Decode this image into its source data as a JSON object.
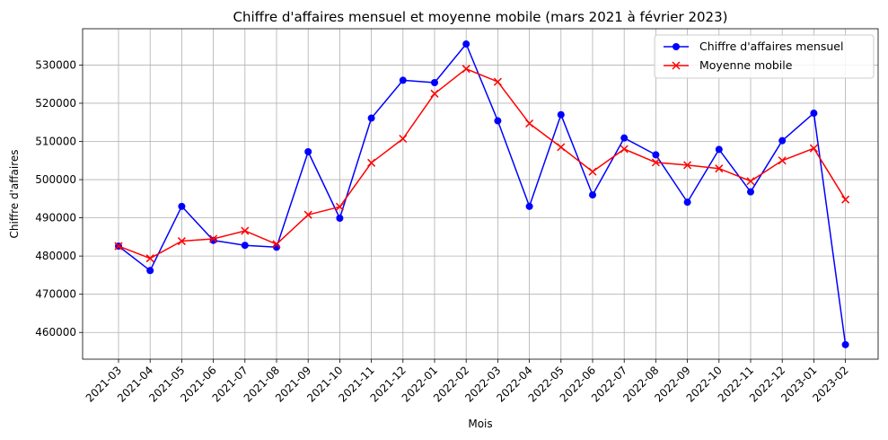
{
  "chart_data": {
    "type": "line",
    "title": "Chiffre d'affaires mensuel et moyenne mobile (mars 2021 à février 2023)",
    "xlabel": "Mois",
    "ylabel": "Chiffre d'affaires",
    "categories": [
      "2021-03",
      "2021-04",
      "2021-05",
      "2021-06",
      "2021-07",
      "2021-08",
      "2021-09",
      "2021-10",
      "2021-11",
      "2021-12",
      "2022-01",
      "2022-02",
      "2022-03",
      "2022-04",
      "2022-05",
      "2022-06",
      "2022-07",
      "2022-08",
      "2022-09",
      "2022-10",
      "2022-11",
      "2022-12",
      "2023-01",
      "2023-02"
    ],
    "yticks": [
      460000,
      470000,
      480000,
      490000,
      500000,
      510000,
      520000,
      530000
    ],
    "ylim": [
      453000,
      539500
    ],
    "grid": true,
    "legend_position": "top-right",
    "series": [
      {
        "name": "Chiffre d'affaires mensuel",
        "color": "#0000ff",
        "marker": "circle",
        "values": [
          482600,
          476200,
          493000,
          484100,
          482800,
          482300,
          507300,
          489900,
          516100,
          526000,
          525400,
          535500,
          515400,
          493000,
          517000,
          496000,
          510900,
          506500,
          494100,
          507900,
          496800,
          510200,
          517400,
          456800
        ]
      },
      {
        "name": "Moyenne mobile",
        "color": "#ff0000",
        "marker": "x",
        "values": [
          482600,
          479400,
          483900,
          484500,
          486600,
          483100,
          490800,
          492900,
          504400,
          510700,
          522500,
          529000,
          525600,
          514700,
          508500,
          502100,
          508000,
          504500,
          503800,
          502900,
          499600,
          505000,
          508200,
          494800
        ]
      }
    ]
  }
}
